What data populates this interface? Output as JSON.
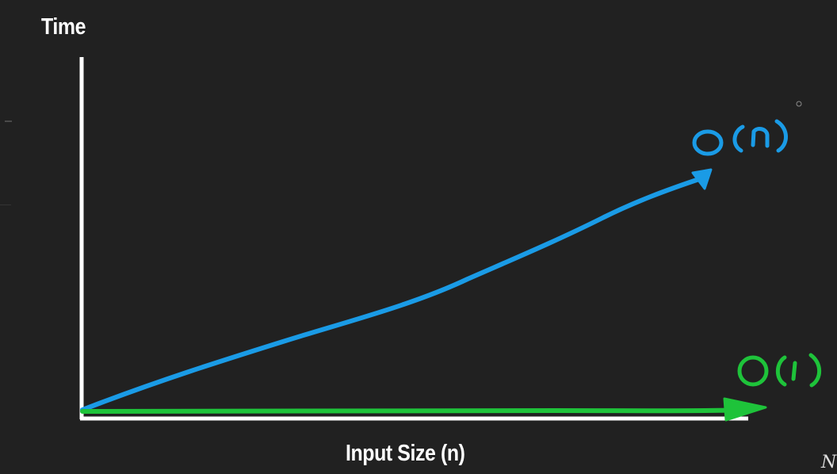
{
  "axes": {
    "y_label": "Time",
    "x_label": "Input Size (n)"
  },
  "curves": [
    {
      "label": "O(n)",
      "color": "#1a9be6"
    },
    {
      "label": "O(1)",
      "color": "#1ec33a"
    }
  ],
  "colors": {
    "background": "#212121",
    "axis": "#ffffff"
  }
}
